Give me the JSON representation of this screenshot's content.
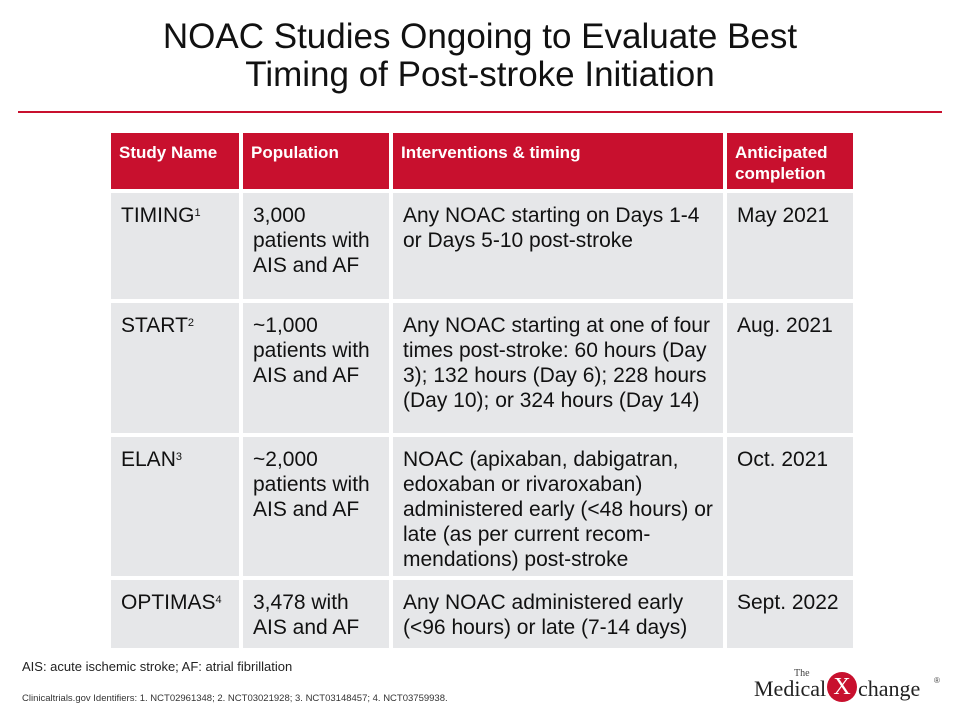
{
  "title": {
    "line1": "NOAC Studies Ongoing to Evaluate Best",
    "line2": "Timing of Post-stroke Initiation"
  },
  "table": {
    "headers": [
      "Study Name",
      "Population",
      "Interventions & timing",
      "Anticipated completion"
    ],
    "rows": [
      {
        "study": "TIMING",
        "ref": "1",
        "population": "3,000 patients with AIS and AF",
        "interventions": "Any NOAC starting on Days 1-4 or Days 5-10 post-stroke",
        "completion": "May 2021"
      },
      {
        "study": "START",
        "ref": "2",
        "population": "~1,000 patients with AIS and AF",
        "interventions": "Any NOAC starting at one of four times post-stroke: 60 hours (Day 3); 132 hours (Day 6); 228 hours (Day 10); or 324 hours (Day 14)",
        "completion": "Aug. 2021"
      },
      {
        "study": "ELAN",
        "ref": "3",
        "population": "~2,000 patients with AIS and AF",
        "interventions": "NOAC (apixaban, dabigatran, edoxaban or rivaroxaban) administered early (<48 hours) or late (as per current recom-mendations) post-stroke",
        "completion": "Oct. 2021"
      },
      {
        "study": "OPTIMAS",
        "ref": "4",
        "population": "3,478 with AIS and AF",
        "interventions": "Any NOAC  administered early (<96 hours) or late (7-14 days)",
        "completion": "Sept. 2022"
      }
    ]
  },
  "footnote": "AIS: acute ischemic stroke; AF: atrial fibrillation",
  "identifiers": "Clinicaltrials.gov Identifiers: 1. NCT02961348; 2. NCT03021928; 3. NCT03148457; 4. NCT03759938.",
  "logo": {
    "the": "The",
    "word1": "Medical",
    "x": "X",
    "word2": "change",
    "reg": "®"
  },
  "colors": {
    "accent": "#c8102e",
    "cell": "#e6e7e9"
  }
}
